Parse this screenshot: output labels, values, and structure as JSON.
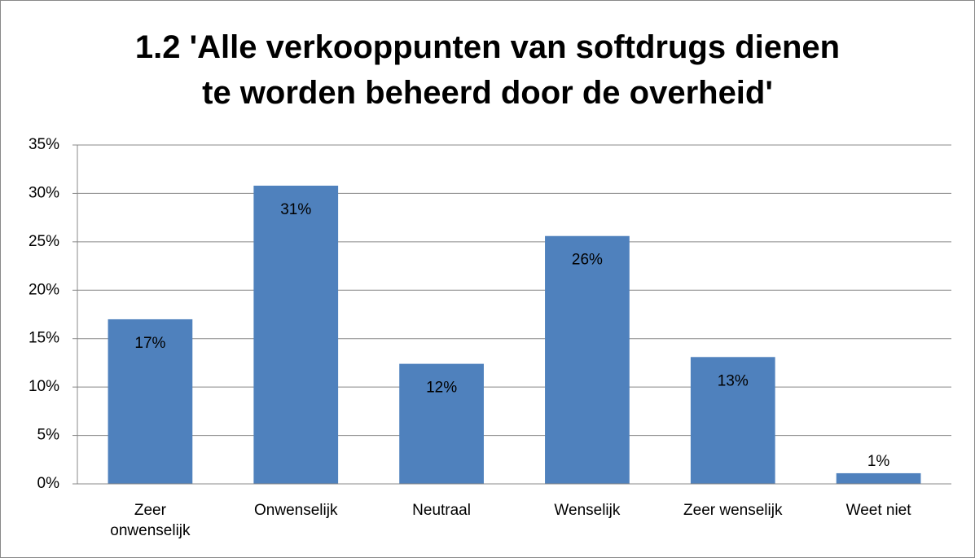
{
  "chart_data": {
    "type": "bar",
    "title": "1.2 'Alle verkooppunten van softdrugs dienen\nte worden beheerd door de overheid'",
    "categories": [
      "Zeer\nonwenselijk",
      "Onwenselijk",
      "Neutraal",
      "Wenselijk",
      "Zeer wenselijk",
      "Weet niet"
    ],
    "values": [
      17.0,
      30.8,
      12.4,
      25.6,
      13.1,
      1.1
    ],
    "value_labels": [
      "17%",
      "31%",
      "12%",
      "26%",
      "13%",
      "1%"
    ],
    "color": "#4f81bd",
    "ylim": [
      0,
      35
    ],
    "yticks": [
      {
        "value": 0,
        "label": "0%"
      },
      {
        "value": 5,
        "label": "5%"
      },
      {
        "value": 10,
        "label": "10%"
      },
      {
        "value": 15,
        "label": "15%"
      },
      {
        "value": 20,
        "label": "20%"
      },
      {
        "value": 25,
        "label": "25%"
      },
      {
        "value": 30,
        "label": "30%"
      },
      {
        "value": 35,
        "label": "35%"
      }
    ],
    "grid": true
  }
}
